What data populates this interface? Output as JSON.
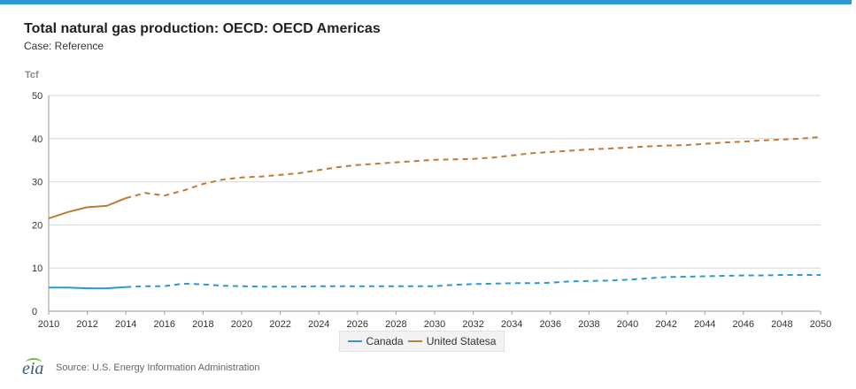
{
  "header": {
    "title": "Total natural gas production: OECD: OECD Americas",
    "subtitle": "Case: Reference"
  },
  "footer": {
    "logo_text": "eia",
    "source": "Source: U.S. Energy Information Administration"
  },
  "colors": {
    "accent_bar": "#2a9ad6",
    "canada": "#2a9ad6",
    "united_states": "#c07a33",
    "grid": "#d9d9d9"
  },
  "chart_data": {
    "type": "line",
    "unit_label": "Tcf",
    "xlim": [
      2010,
      2050
    ],
    "ylim": [
      0,
      50
    ],
    "yticks": [
      0,
      10,
      20,
      30,
      40,
      50
    ],
    "xticks": [
      2010,
      2012,
      2014,
      2016,
      2018,
      2020,
      2022,
      2024,
      2026,
      2028,
      2030,
      2032,
      2034,
      2036,
      2038,
      2040,
      2042,
      2044,
      2046,
      2048,
      2050
    ],
    "grid": true,
    "legend_position": "bottom-center",
    "historical_end": 2014,
    "x": [
      2010,
      2011,
      2012,
      2013,
      2014,
      2015,
      2016,
      2017,
      2018,
      2019,
      2020,
      2021,
      2022,
      2023,
      2024,
      2025,
      2026,
      2027,
      2028,
      2029,
      2030,
      2031,
      2032,
      2033,
      2034,
      2035,
      2036,
      2037,
      2038,
      2039,
      2040,
      2041,
      2042,
      2043,
      2044,
      2045,
      2046,
      2047,
      2048,
      2049,
      2050
    ],
    "series": [
      {
        "name": "Canada",
        "color": "#2a9ad6",
        "values": [
          5.5,
          5.5,
          5.3,
          5.3,
          5.6,
          5.8,
          5.8,
          6.4,
          6.2,
          5.9,
          5.8,
          5.7,
          5.7,
          5.7,
          5.8,
          5.8,
          5.8,
          5.8,
          5.8,
          5.8,
          5.8,
          6.1,
          6.3,
          6.4,
          6.5,
          6.5,
          6.6,
          6.9,
          7.0,
          7.1,
          7.3,
          7.6,
          7.9,
          8.0,
          8.1,
          8.2,
          8.3,
          8.3,
          8.4,
          8.4,
          8.4
        ]
      },
      {
        "name": "United Statesa",
        "color": "#c07a33",
        "values": [
          21.5,
          23.0,
          24.1,
          24.4,
          26.2,
          27.4,
          26.8,
          28.0,
          29.5,
          30.5,
          31.0,
          31.2,
          31.6,
          32.0,
          32.7,
          33.4,
          33.9,
          34.2,
          34.5,
          34.8,
          35.1,
          35.2,
          35.3,
          35.6,
          36.1,
          36.6,
          36.9,
          37.2,
          37.5,
          37.7,
          37.9,
          38.2,
          38.4,
          38.5,
          38.8,
          39.1,
          39.3,
          39.6,
          39.8,
          40.0,
          40.4
        ]
      }
    ]
  }
}
